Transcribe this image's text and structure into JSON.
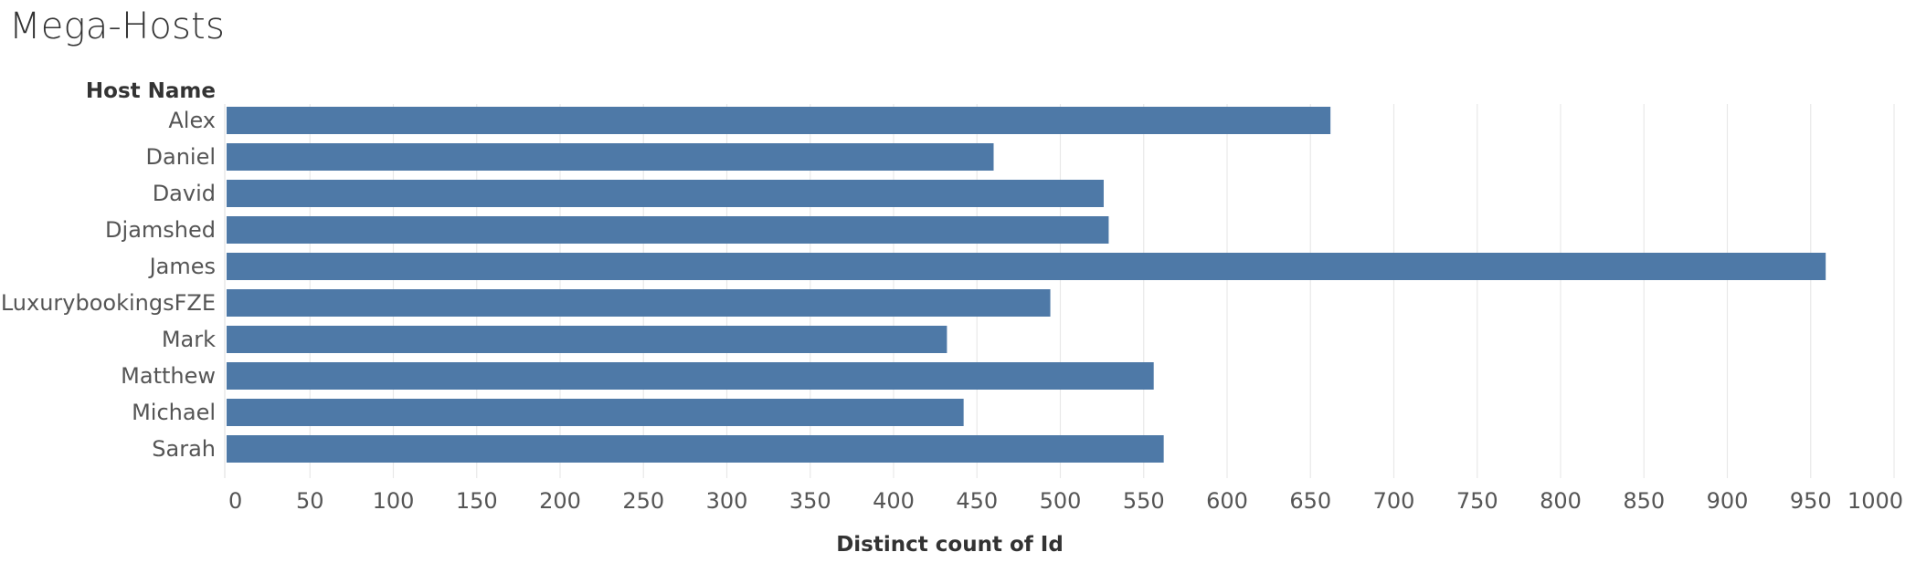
{
  "chart_data": {
    "type": "bar",
    "orientation": "horizontal",
    "title": "Mega-Hosts",
    "category_header": "Host Name",
    "xlabel": "Distinct count of Id",
    "xlim": [
      0,
      1000
    ],
    "xticks": [
      0,
      50,
      100,
      150,
      200,
      250,
      300,
      350,
      400,
      450,
      500,
      550,
      600,
      650,
      700,
      750,
      800,
      850,
      900,
      950,
      1000
    ],
    "grid": "vertical",
    "categories": [
      "Alex",
      "Daniel",
      "David",
      "Djamshed",
      "James",
      "LuxurybookingsFZE",
      "Mark",
      "Matthew",
      "Michael",
      "Sarah"
    ],
    "values": [
      662,
      460,
      526,
      529,
      959,
      494,
      432,
      556,
      442,
      562
    ],
    "bar_color": "#4e79a7",
    "grid_color": "#e8e8e8",
    "text_color": "#555555"
  }
}
